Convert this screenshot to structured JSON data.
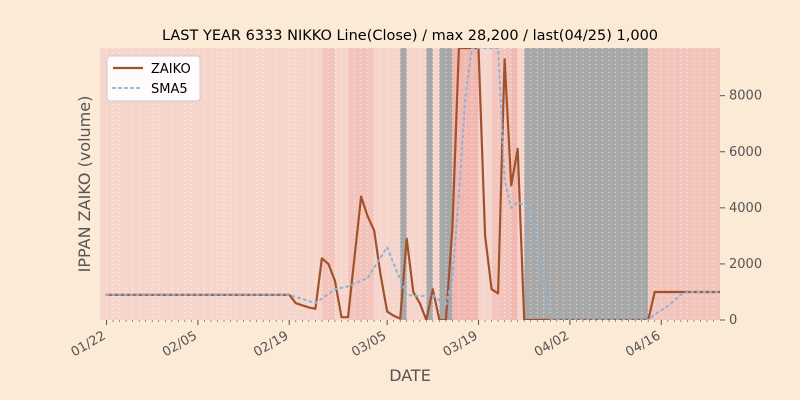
{
  "chart_data": {
    "type": "line",
    "title": "LAST YEAR 6333 NIKKO Line(Close) / max 28,200 / last(04/25) 1,000",
    "xlabel": "DATE",
    "ylabel": "IPPAN ZAIKO (volume)",
    "ylim": [
      0,
      9700
    ],
    "xlim": [
      "01/21",
      "04/25"
    ],
    "y_axis_side": "right",
    "y_ticks": [
      0,
      2000,
      4000,
      6000,
      8000
    ],
    "x_ticks": [
      "01/22",
      "02/05",
      "02/19",
      "03/05",
      "03/19",
      "04/02",
      "04/16"
    ],
    "grid": true,
    "legend": "top-left",
    "colors": {
      "background": "#fbead6",
      "plot_background": "#ebebeb",
      "zaiko": "#a0522d",
      "sma5": "#8fb3d0",
      "band_light": "#f6d5cc",
      "band_mid": "#f2c4bb",
      "band_dark": "#f0b8b0",
      "band_grey": "#a8a8a8"
    },
    "series": [
      {
        "name": "ZAIKO",
        "style": "solid",
        "points": [
          [
            "01/22",
            900
          ],
          [
            "02/19",
            900
          ],
          [
            "02/20",
            600
          ],
          [
            "02/22",
            450
          ],
          [
            "02/23",
            400
          ],
          [
            "02/24",
            2200
          ],
          [
            "02/25",
            2000
          ],
          [
            "02/26",
            1400
          ],
          [
            "02/27",
            100
          ],
          [
            "02/28",
            100
          ],
          [
            "03/01",
            4400
          ],
          [
            "03/02",
            3700
          ],
          [
            "03/03",
            3200
          ],
          [
            "03/04",
            1600
          ],
          [
            "03/05",
            300
          ],
          [
            "03/06",
            150
          ],
          [
            "03/07",
            50
          ],
          [
            "03/08",
            2900
          ],
          [
            "03/09",
            1000
          ],
          [
            "03/10",
            600
          ],
          [
            "03/11",
            0
          ],
          [
            "03/12",
            1100
          ],
          [
            "03/13",
            0
          ],
          [
            "03/14",
            0
          ],
          [
            "03/15",
            3300
          ],
          [
            "03/16",
            9700
          ],
          [
            "03/19",
            9700
          ],
          [
            "03/20",
            3000
          ],
          [
            "03/21",
            1100
          ],
          [
            "03/22",
            950
          ],
          [
            "03/23",
            9300
          ],
          [
            "03/24",
            4800
          ],
          [
            "03/25",
            6100
          ],
          [
            "03/26",
            0
          ],
          [
            "04/14",
            0
          ],
          [
            "04/15",
            1000
          ],
          [
            "04/25",
            1000
          ]
        ]
      },
      {
        "name": "SMA5",
        "style": "dotted",
        "points": [
          [
            "01/22",
            900
          ],
          [
            "02/19",
            900
          ],
          [
            "02/23",
            600
          ],
          [
            "02/26",
            1100
          ],
          [
            "02/28",
            1200
          ],
          [
            "03/02",
            1500
          ],
          [
            "03/05",
            2600
          ],
          [
            "03/06",
            2000
          ],
          [
            "03/08",
            900
          ],
          [
            "03/10",
            850
          ],
          [
            "03/12",
            900
          ],
          [
            "03/14",
            500
          ],
          [
            "03/15",
            1500
          ],
          [
            "03/16",
            4500
          ],
          [
            "03/17",
            8000
          ],
          [
            "03/18",
            9700
          ],
          [
            "03/22",
            9700
          ],
          [
            "03/23",
            5000
          ],
          [
            "03/24",
            4000
          ],
          [
            "03/25",
            4200
          ],
          [
            "03/27",
            4000
          ],
          [
            "03/28",
            2800
          ],
          [
            "03/29",
            1500
          ],
          [
            "03/30",
            0
          ],
          [
            "04/14",
            0
          ],
          [
            "04/15",
            200
          ],
          [
            "04/17",
            500
          ],
          [
            "04/19",
            900
          ],
          [
            "04/20",
            1000
          ],
          [
            "04/25",
            1000
          ]
        ]
      }
    ],
    "bands": [
      {
        "start": "01/21",
        "end": "04/25",
        "tone": "light"
      },
      {
        "start": "02/24",
        "end": "02/26",
        "tone": "mid"
      },
      {
        "start": "02/28",
        "end": "03/03",
        "tone": "mid"
      },
      {
        "start": "03/07",
        "end": "03/08",
        "tone": "grey"
      },
      {
        "start": "03/11",
        "end": "03/12",
        "tone": "grey"
      },
      {
        "start": "03/13",
        "end": "03/15",
        "tone": "grey"
      },
      {
        "start": "03/15",
        "end": "03/19",
        "tone": "dark"
      },
      {
        "start": "03/21",
        "end": "03/24",
        "tone": "mid"
      },
      {
        "start": "03/24",
        "end": "03/25",
        "tone": "dark"
      },
      {
        "start": "03/26",
        "end": "04/14",
        "tone": "grey"
      },
      {
        "start": "04/14",
        "end": "04/25",
        "tone": "mid"
      }
    ]
  }
}
